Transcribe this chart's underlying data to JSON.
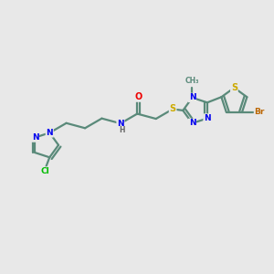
{
  "background_color": "#e8e8e8",
  "bond_color": "#5a8a7a",
  "bond_width": 1.6,
  "atom_colors": {
    "N": "#0000ee",
    "O": "#ee0000",
    "S": "#ccaa00",
    "Cl": "#00bb00",
    "Br": "#bb6600",
    "C": "#5a8a7a",
    "H": "#888888"
  },
  "figsize": [
    3.0,
    3.0
  ],
  "dpi": 100
}
